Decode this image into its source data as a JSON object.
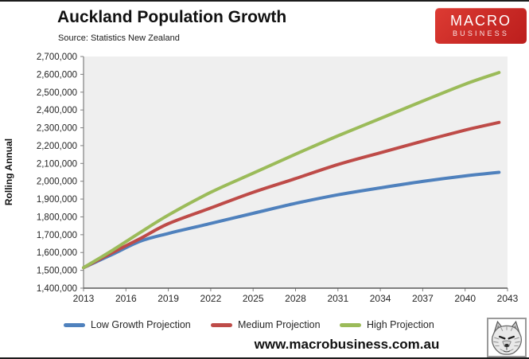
{
  "header": {
    "title": "Auckland Population Growth",
    "source": "Source: Statistics New Zealand",
    "logo": {
      "line1": "MACRO",
      "line2": "BUSINESS",
      "bg_color": "#C92A26"
    }
  },
  "chart_data": {
    "type": "line",
    "title": "Auckland Population Growth",
    "ylabel": "Rolling Annual",
    "xlabel": "",
    "ylim": [
      1400000,
      2700000
    ],
    "xlim": [
      2013,
      2043
    ],
    "y_ticks": [
      1400000,
      1500000,
      1600000,
      1700000,
      1800000,
      1900000,
      2000000,
      2100000,
      2200000,
      2300000,
      2400000,
      2500000,
      2600000,
      2700000
    ],
    "x_ticks": [
      2013,
      2016,
      2019,
      2022,
      2025,
      2028,
      2031,
      2034,
      2037,
      2040,
      2043
    ],
    "grid": false,
    "plot_bg": "#EFEFEF",
    "axis_color": "#7F7F7F",
    "tick_label_color": "#262626",
    "legend_position": "bottom",
    "x": [
      2013,
      2015,
      2017,
      2019,
      2022,
      2025,
      2028,
      2031,
      2034,
      2037,
      2040,
      2042.4
    ],
    "series": [
      {
        "name": "Low Growth Projection",
        "color": "#4F81BD",
        "values": [
          1515000,
          1588000,
          1663000,
          1707000,
          1763000,
          1820000,
          1876000,
          1924000,
          1963000,
          1999000,
          2030000,
          2050000
        ]
      },
      {
        "name": "Medium Projection",
        "color": "#BE4B48",
        "values": [
          1515000,
          1598000,
          1678000,
          1762000,
          1850000,
          1938000,
          2015000,
          2094000,
          2160000,
          2225000,
          2287000,
          2330000
        ]
      },
      {
        "name": "High Projection",
        "color": "#9BBB59",
        "values": [
          1515000,
          1610000,
          1712000,
          1810000,
          1938000,
          2045000,
          2152000,
          2255000,
          2352000,
          2450000,
          2545000,
          2610000
        ]
      }
    ]
  },
  "footer": {
    "url": "www.macrobusiness.com.au"
  }
}
